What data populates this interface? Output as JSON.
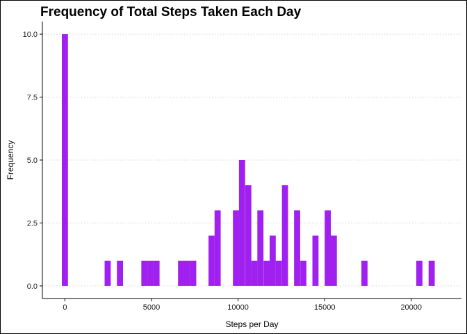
{
  "chart_data": {
    "type": "bar",
    "title": "Frequency of Total Steps Taken Each Day",
    "xlabel": "Steps per Day",
    "ylabel": "Frequency",
    "xlim": [
      -1300,
      22900
    ],
    "ylim": [
      -0.5,
      10.5
    ],
    "xticks": [
      0,
      5000,
      10000,
      15000,
      20000
    ],
    "xtick_labels": [
      "0",
      "5000",
      "10000",
      "15000",
      "20000"
    ],
    "yticks": [
      0,
      2.5,
      5,
      7.5,
      10
    ],
    "ytick_labels": [
      "0.0",
      "2.5",
      "5.0",
      "7.5",
      "10.0"
    ],
    "bin_width": 353,
    "bar_color": "#A020F0",
    "grid": "horizontal dotted",
    "bins": [
      {
        "x": 0,
        "count": 10
      },
      {
        "x": 2470,
        "count": 1
      },
      {
        "x": 3180,
        "count": 1
      },
      {
        "x": 4590,
        "count": 1
      },
      {
        "x": 4940,
        "count": 1
      },
      {
        "x": 5290,
        "count": 1
      },
      {
        "x": 6710,
        "count": 1
      },
      {
        "x": 7060,
        "count": 1
      },
      {
        "x": 7410,
        "count": 1
      },
      {
        "x": 8470,
        "count": 2
      },
      {
        "x": 8820,
        "count": 3
      },
      {
        "x": 9880,
        "count": 3
      },
      {
        "x": 10230,
        "count": 5
      },
      {
        "x": 10590,
        "count": 4
      },
      {
        "x": 10940,
        "count": 1
      },
      {
        "x": 11290,
        "count": 3
      },
      {
        "x": 11650,
        "count": 1
      },
      {
        "x": 12000,
        "count": 2
      },
      {
        "x": 12350,
        "count": 1
      },
      {
        "x": 12710,
        "count": 4
      },
      {
        "x": 13410,
        "count": 3
      },
      {
        "x": 13770,
        "count": 1
      },
      {
        "x": 14470,
        "count": 2
      },
      {
        "x": 15180,
        "count": 3
      },
      {
        "x": 15530,
        "count": 2
      },
      {
        "x": 17300,
        "count": 1
      },
      {
        "x": 20470,
        "count": 1
      },
      {
        "x": 21180,
        "count": 1
      }
    ]
  }
}
